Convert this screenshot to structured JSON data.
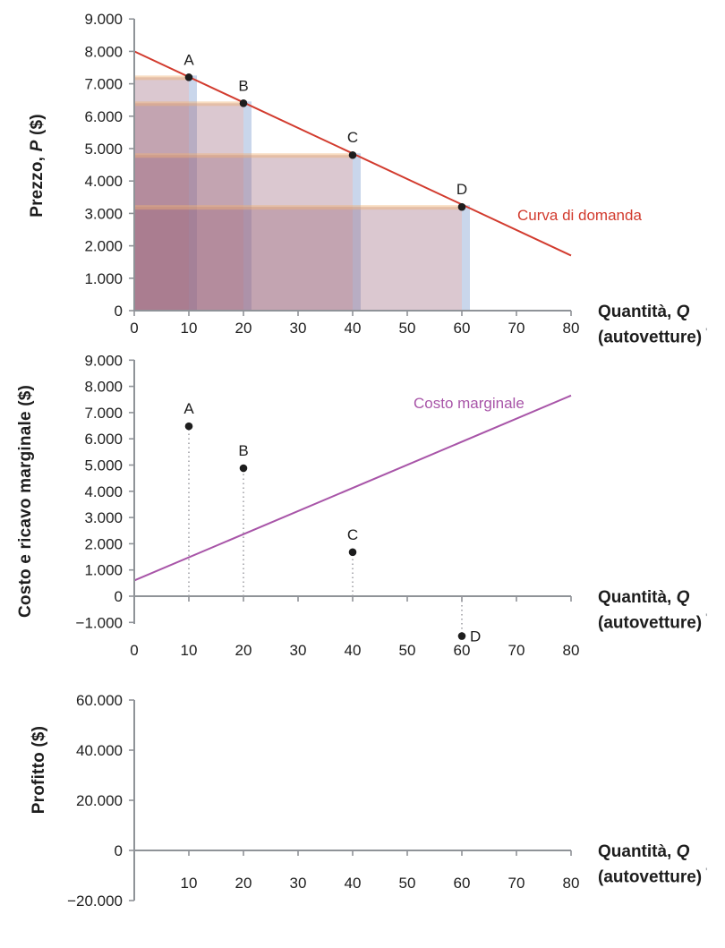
{
  "palette": {
    "text": "#1d1d1d",
    "axis": "#8f9398",
    "red": "#d23b2e",
    "purple": "#a855a8",
    "dot": "#1d1d1d",
    "stem": "#9a9aa0",
    "rect_fill": "rgba(151,98,120,0.35)",
    "rect_top": "rgba(240,178,118,0.45)",
    "rect_right": "rgba(148,173,216,0.5)"
  },
  "chart_data": [
    {
      "id": "demand-chart",
      "type": "line+scatter+area",
      "title": "",
      "ylabel": {
        "pre": "Prezzo, ",
        "var": "P",
        "post": " ($)"
      },
      "xlabel": {
        "line1_pre": "Quantità, ",
        "line1_var": "Q",
        "line2": "(autovetture)",
        "suffix": "'"
      },
      "xlim": [
        0,
        80
      ],
      "ylim": [
        0,
        9000
      ],
      "grid": false,
      "legend_position": "none",
      "x_ticks": {
        "values": [
          0,
          10,
          20,
          30,
          40,
          50,
          60,
          70,
          80
        ],
        "labels": [
          "0",
          "10",
          "20",
          "30",
          "40",
          "50",
          "60",
          "70",
          "80"
        ]
      },
      "y_ticks": {
        "values": [
          0,
          1000,
          2000,
          3000,
          4000,
          5000,
          6000,
          7000,
          8000,
          9000
        ],
        "labels": [
          "0",
          "1.000",
          "2.000",
          "3.000",
          "4.000",
          "5.000",
          "6.000",
          "7.000",
          "8.000",
          "9.000"
        ]
      },
      "lines": [
        {
          "name": "Curva di domanda",
          "from": [
            0,
            8000
          ],
          "to": [
            80,
            1700
          ],
          "color_key": "red"
        }
      ],
      "line_label": {
        "text": "Curva di domanda"
      },
      "points": [
        {
          "label": "A",
          "x": 10,
          "y": 7200
        },
        {
          "label": "B",
          "x": 20,
          "y": 6400
        },
        {
          "label": "C",
          "x": 40,
          "y": 4800
        },
        {
          "label": "D",
          "x": 60,
          "y": 3200
        }
      ],
      "revenue_rectangles": [
        {
          "point": "A",
          "q": 10,
          "p": 7200
        },
        {
          "point": "B",
          "q": 20,
          "p": 6400
        },
        {
          "point": "C",
          "q": 40,
          "p": 4800
        },
        {
          "point": "D",
          "q": 60,
          "p": 3200
        }
      ],
      "stems": false
    },
    {
      "id": "marginal-chart",
      "type": "line+scatter",
      "title": "",
      "ylabel": {
        "pre": "Costo e ricavo marginale ($)",
        "var": "",
        "post": ""
      },
      "xlabel": {
        "line1_pre": "Quantità, ",
        "line1_var": "Q",
        "line2": "(autovetture)",
        "suffix": "'"
      },
      "xlim": [
        0,
        80
      ],
      "ylim": [
        -1000,
        9000
      ],
      "grid": false,
      "legend_position": "none",
      "x_ticks": {
        "values": [
          0,
          10,
          20,
          30,
          40,
          50,
          60,
          70,
          80
        ],
        "labels": [
          "0",
          "10",
          "20",
          "30",
          "40",
          "50",
          "60",
          "70",
          "80"
        ]
      },
      "y_ticks": {
        "values": [
          -1000,
          0,
          1000,
          2000,
          3000,
          4000,
          5000,
          6000,
          7000,
          8000,
          9000
        ],
        "labels": [
          "−1.000",
          "0",
          "1.000",
          "2.000",
          "3.000",
          "4.000",
          "5.000",
          "6.000",
          "7.000",
          "8.000",
          "9.000"
        ]
      },
      "lines": [
        {
          "name": "Costo marginale",
          "from": [
            0,
            600
          ],
          "to": [
            80,
            7650
          ],
          "color_key": "purple"
        }
      ],
      "line_label": {
        "text": "Costo marginale"
      },
      "points": [
        {
          "label": "A",
          "x": 10,
          "y": 6480
        },
        {
          "label": "B",
          "x": 20,
          "y": 4880
        },
        {
          "label": "C",
          "x": 40,
          "y": 1680
        },
        {
          "label": "D",
          "x": 60,
          "y": -1520,
          "label_side": "right"
        }
      ],
      "revenue_rectangles": [],
      "stems": true
    },
    {
      "id": "profit-chart",
      "type": "empty-axes",
      "title": "",
      "ylabel": {
        "pre": "Profitto ($)",
        "var": "",
        "post": ""
      },
      "xlabel": {
        "line1_pre": "Quantità, ",
        "line1_var": "Q",
        "line2": "(autovetture)",
        "suffix": "'"
      },
      "xlim": [
        0,
        80
      ],
      "ylim": [
        -20000,
        60000
      ],
      "grid": false,
      "legend_position": "none",
      "x_ticks": {
        "values": [
          10,
          20,
          30,
          40,
          50,
          60,
          70,
          80
        ],
        "labels": [
          "10",
          "20",
          "30",
          "40",
          "50",
          "60",
          "70",
          "80"
        ]
      },
      "y_ticks": {
        "values": [
          -20000,
          0,
          20000,
          40000,
          60000
        ],
        "labels": [
          "−20.000",
          "0",
          "20.000",
          "40.000",
          "60.000"
        ]
      },
      "lines": [],
      "line_label": {
        "text": ""
      },
      "points": [],
      "revenue_rectangles": [],
      "stems": false
    }
  ]
}
